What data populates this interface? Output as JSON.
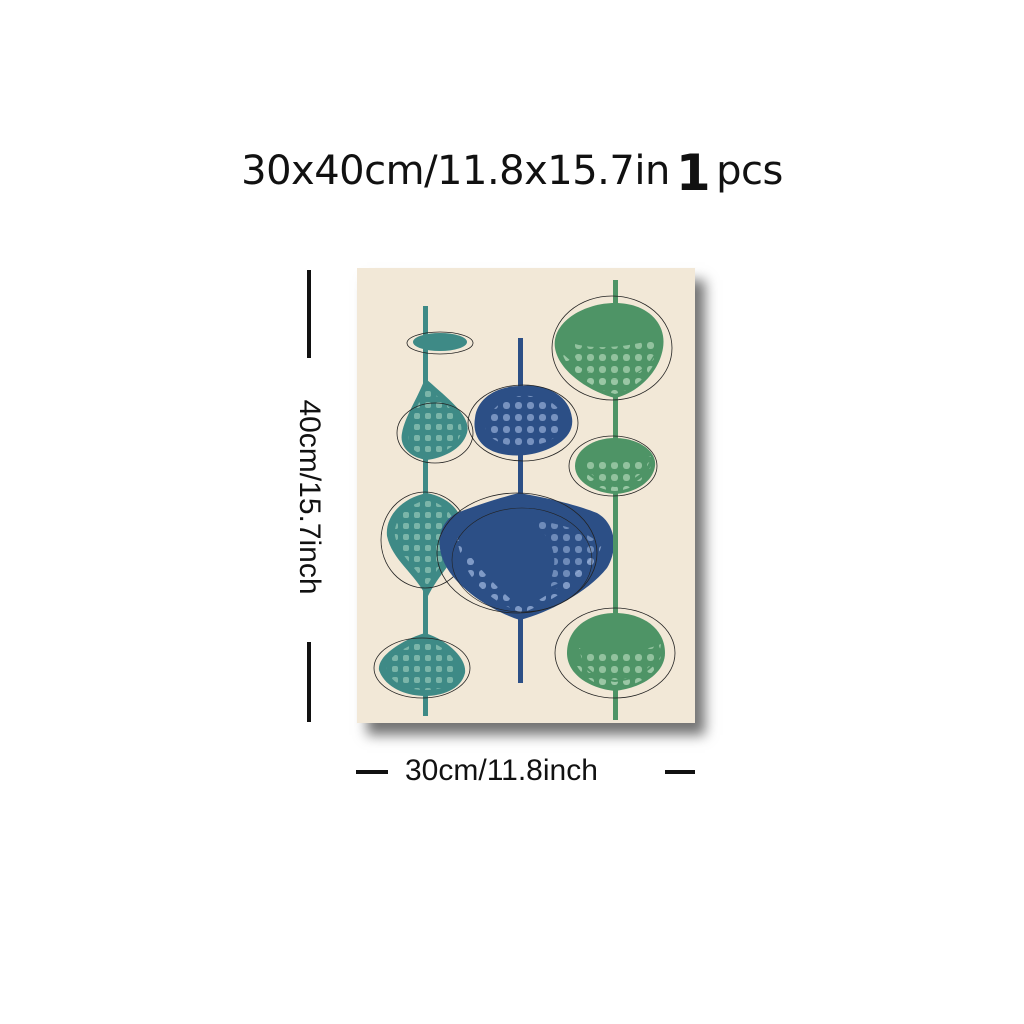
{
  "header": {
    "size_text": "30x40cm/11.8x15.7in",
    "quantity": "1",
    "unit": "pcs"
  },
  "dimensions": {
    "height_label": "40cm/15.7inch",
    "width_label": "30cm/11.8inch"
  },
  "artwork": {
    "background_color": "#f2e8d7",
    "colors": {
      "teal": "#3e8a86",
      "green": "#4e9466",
      "blue": "#2c4f86",
      "dot_light": "#a9cfc4",
      "outline": "#222222"
    }
  }
}
